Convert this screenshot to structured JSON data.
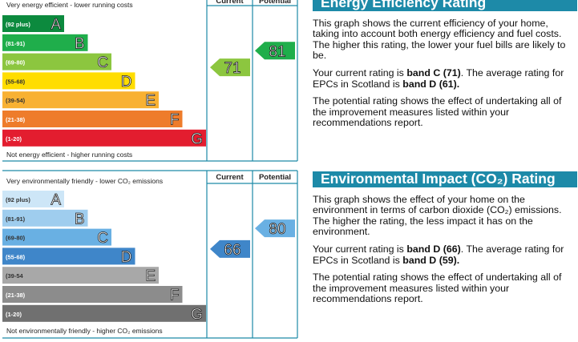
{
  "energy_chart": {
    "header_top": "Very energy efficient - lower running costs",
    "header_bottom": "Not energy efficient - higher running costs",
    "columns": [
      "Current",
      "Potential"
    ],
    "bands": [
      {
        "range": "(92 plus)",
        "letter": "A",
        "color": "#0c8a3e",
        "text_color": "#ffffff"
      },
      {
        "range": "(81-91)",
        "letter": "B",
        "color": "#1fae4b",
        "text_color": "#ffffff"
      },
      {
        "range": "(69-80)",
        "letter": "C",
        "color": "#8cc63f",
        "text_color": "#ffffff"
      },
      {
        "range": "(55-68)",
        "letter": "D",
        "color": "#ffdd00",
        "text_color": "#333333"
      },
      {
        "range": "(39-54)",
        "letter": "E",
        "color": "#f8b133",
        "text_color": "#333333"
      },
      {
        "range": "(21-38)",
        "letter": "F",
        "color": "#ee7c2b",
        "text_color": "#ffffff"
      },
      {
        "range": "(1-20)",
        "letter": "G",
        "color": "#e31d2f",
        "text_color": "#ffffff"
      }
    ],
    "current": 71,
    "potential": 81
  },
  "environmental_chart": {
    "header_top": "Very environmentally friendly - lower CO₂ emissions",
    "header_bottom": "Not environmentally friendly - higher CO₂ emissions",
    "columns": [
      "Current",
      "Potential"
    ],
    "bands": [
      {
        "range": "(92 plus)",
        "letter": "A",
        "color": "#cde6f7",
        "text_color": "#333333"
      },
      {
        "range": "(81-91)",
        "letter": "B",
        "color": "#9fcdee",
        "text_color": "#333333"
      },
      {
        "range": "(69-80)",
        "letter": "C",
        "color": "#69b0e3",
        "text_color": "#333333"
      },
      {
        "range": "(55-68)",
        "letter": "D",
        "color": "#3f86c9",
        "text_color": "#ffffff"
      },
      {
        "range": "(39-54",
        "letter": "E",
        "color": "#a8a8a8",
        "text_color": "#333333"
      },
      {
        "range": "(21-38)",
        "letter": "F",
        "color": "#8c8c8c",
        "text_color": "#ffffff"
      },
      {
        "range": "(1-20)",
        "letter": "G",
        "color": "#707070",
        "text_color": "#ffffff"
      }
    ],
    "current": 66,
    "potential": 80
  },
  "energy_text": {
    "title": "Energy Efficiency Rating",
    "paragraphs": [
      [
        {
          "text": "This graph shows the current efficiency of your home, taking into account both energy efficiency and fuel costs. The higher this rating, the lower your fuel bills are likely to be."
        }
      ],
      [
        {
          "text": "Your current rating is "
        },
        {
          "text": "band C (71)",
          "bold": true
        },
        {
          "text": ". The average rating for EPCs in Scotland is "
        },
        {
          "text": "band D (61).",
          "bold": true
        }
      ],
      [
        {
          "text": "The potential rating shows the effect of undertaking all of the improvement measures listed within your recommendations report."
        }
      ]
    ]
  },
  "environmental_text": {
    "title": "Environmental Impact (CO₂) Rating",
    "paragraphs": [
      [
        {
          "text": "This graph shows the effect of your home on the environment in terms of carbon dioxide (CO₂) emissions. The higher the rating, the less impact it has on the environment."
        }
      ],
      [
        {
          "text": "Your current rating is "
        },
        {
          "text": "band D (66)",
          "bold": true
        },
        {
          "text": ". The average rating for EPCs in Scotland is "
        },
        {
          "text": "band D (59).",
          "bold": true
        }
      ],
      [
        {
          "text": "The potential rating shows the effect of undertaking all of the improvement measures listed within your recommendations report."
        }
      ]
    ]
  }
}
